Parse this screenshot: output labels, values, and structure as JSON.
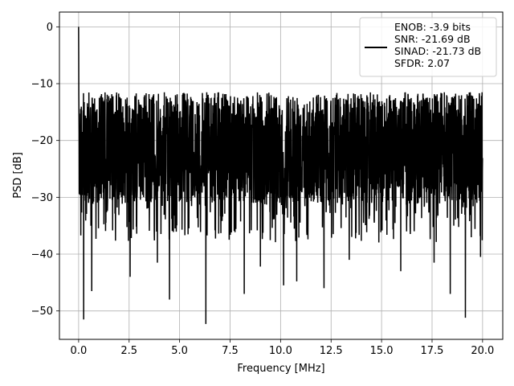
{
  "chart_data": {
    "type": "line",
    "xlabel": "Frequency [MHz]",
    "ylabel": "PSD [dB]",
    "xlim": [
      -0.95,
      21.0
    ],
    "ylim": [
      -55,
      2.6
    ],
    "xticks": [
      0.0,
      2.5,
      5.0,
      7.5,
      10.0,
      12.5,
      15.0,
      17.5,
      20.0
    ],
    "xtick_labels": [
      "0.0",
      "2.5",
      "5.0",
      "7.5",
      "10.0",
      "12.5",
      "15.0",
      "17.5",
      "20.0"
    ],
    "yticks": [
      0,
      -10,
      -20,
      -30,
      -40,
      -50
    ],
    "ytick_labels": [
      "0",
      "−10",
      "−20",
      "−30",
      "−40",
      "−50"
    ],
    "grid": true,
    "legend_position": "top-right",
    "series": [
      {
        "name": "ENOB: -3.9 bits\nSNR: -21.69 dB\nSINAD: -21.73 dB\nSFDR: 2.07",
        "color": "#000000",
        "x_range": [
          0.0,
          20.0
        ],
        "noise_floor_db": -20,
        "noise_upper_db": -9.5,
        "peak": {
          "x": 0.0,
          "y": 0.0
        },
        "deep_nulls": [
          {
            "x": 0.25,
            "y": -51.5
          },
          {
            "x": 0.65,
            "y": -46.5
          },
          {
            "x": 2.55,
            "y": -44.0
          },
          {
            "x": 3.9,
            "y": -41.5
          },
          {
            "x": 4.5,
            "y": -48.0
          },
          {
            "x": 6.3,
            "y": -52.3
          },
          {
            "x": 8.2,
            "y": -47.0
          },
          {
            "x": 9.0,
            "y": -42.2
          },
          {
            "x": 10.15,
            "y": -45.5
          },
          {
            "x": 10.8,
            "y": -44.8
          },
          {
            "x": 12.15,
            "y": -46.0
          },
          {
            "x": 13.4,
            "y": -41.0
          },
          {
            "x": 15.95,
            "y": -43.0
          },
          {
            "x": 17.6,
            "y": -41.5
          },
          {
            "x": 18.4,
            "y": -47.0
          },
          {
            "x": 19.15,
            "y": -51.2
          },
          {
            "x": 19.9,
            "y": -40.5
          }
        ]
      }
    ]
  }
}
